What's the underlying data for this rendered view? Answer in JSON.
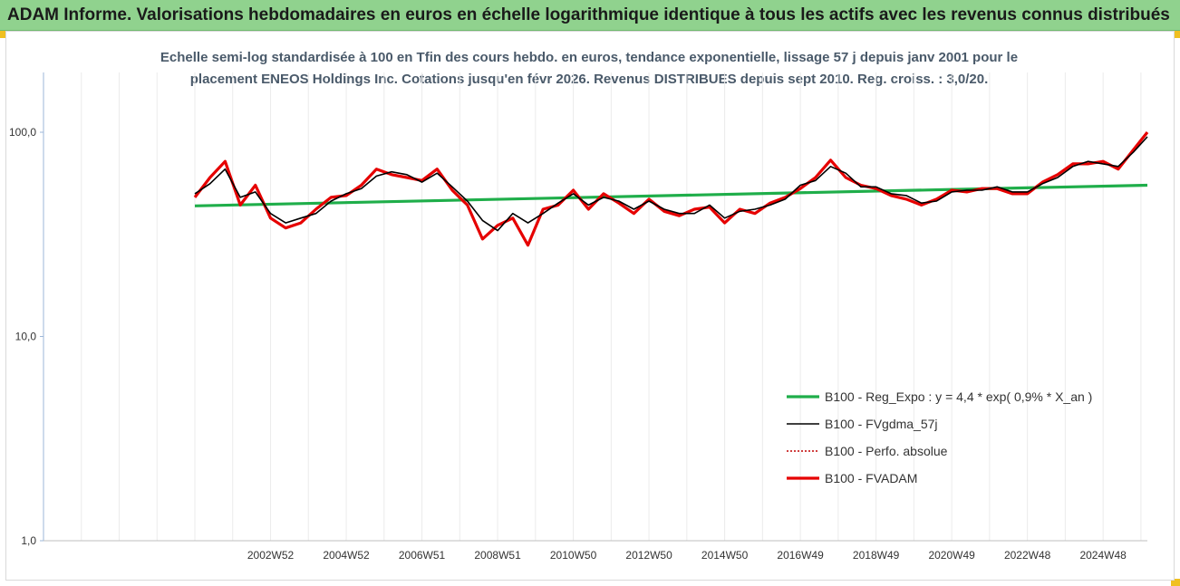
{
  "header": {
    "title": "ADAM Informe. Valorisations hebdomadaires en euros en échelle logarithmique identique à tous les actifs avec les revenus connus distribués"
  },
  "chart_data": {
    "type": "line",
    "title_line1": "Echelle semi-log standardisée à 100 en Tfin des cours hebdo. en euros, tendance exponentielle, lissage 57 j depuis janv 2001 pour le",
    "title_line2": "placement ENEOS Holdings Inc. Cotations jusqu'en févr 2026. Revenus DISTRIBUES depuis sept 2010. Reg. croiss. : 3,0/20.",
    "y_scale": "log",
    "ylim": [
      1,
      100
    ],
    "y_ticks": [
      {
        "value": 1,
        "label": "1,0"
      },
      {
        "value": 10,
        "label": "10,0"
      },
      {
        "value": 100,
        "label": "100,0"
      }
    ],
    "x_ticks": [
      {
        "t": 2003.0,
        "label": "2002W52"
      },
      {
        "t": 2005.0,
        "label": "2004W52"
      },
      {
        "t": 2007.0,
        "label": "2006W51"
      },
      {
        "t": 2009.0,
        "label": "2008W51"
      },
      {
        "t": 2011.0,
        "label": "2010W50"
      },
      {
        "t": 2013.0,
        "label": "2012W50"
      },
      {
        "t": 2015.0,
        "label": "2014W50"
      },
      {
        "t": 2017.0,
        "label": "2016W49"
      },
      {
        "t": 2019.0,
        "label": "2018W49"
      },
      {
        "t": 2021.0,
        "label": "2020W49"
      },
      {
        "t": 2023.0,
        "label": "2022W48"
      },
      {
        "t": 2025.0,
        "label": "2024W48"
      }
    ],
    "x_range": [
      1997.0,
      2026.17
    ],
    "grid": "vertical",
    "legend_position": "bottom-right",
    "series": [
      {
        "name": "B100 - Reg_Expo : y = 4,4 * exp( 0,9% *  X_an )",
        "color": "#1fae4a",
        "style": "solid-thick",
        "x": [
          2001.0,
          2026.17
        ],
        "values": [
          43.6,
          55.0
        ]
      },
      {
        "name": "B100 - FVgdma_57j",
        "color": "#000000",
        "style": "solid-thin",
        "x": [
          2001.0,
          2001.4,
          2001.8,
          2002.2,
          2002.6,
          2003.0,
          2003.4,
          2003.8,
          2004.2,
          2004.6,
          2005.0,
          2005.4,
          2005.8,
          2006.2,
          2006.6,
          2007.0,
          2007.4,
          2007.8,
          2008.2,
          2008.6,
          2009.0,
          2009.4,
          2009.8,
          2010.2,
          2010.6,
          2011.0,
          2011.4,
          2011.8,
          2012.2,
          2012.6,
          2013.0,
          2013.4,
          2013.8,
          2014.2,
          2014.6,
          2015.0,
          2015.4,
          2015.8,
          2016.2,
          2016.6,
          2017.0,
          2017.4,
          2017.8,
          2018.2,
          2018.6,
          2019.0,
          2019.4,
          2019.8,
          2020.2,
          2020.6,
          2021.0,
          2021.4,
          2021.8,
          2022.2,
          2022.6,
          2023.0,
          2023.4,
          2023.8,
          2024.2,
          2024.6,
          2025.0,
          2025.4,
          2025.8,
          2026.17
        ],
        "values": [
          50,
          56,
          66,
          48,
          51,
          40,
          36,
          38,
          40,
          46,
          50,
          53,
          61,
          64,
          62,
          57,
          63,
          54,
          46,
          37,
          33,
          40,
          36,
          40,
          45,
          50,
          44,
          48,
          46,
          42,
          46,
          42,
          40,
          40,
          44,
          38,
          41,
          42,
          44,
          47,
          55,
          58,
          68,
          63,
          54,
          54,
          50,
          49,
          45,
          46,
          51,
          52,
          52,
          54,
          51,
          51,
          56,
          60,
          68,
          72,
          70,
          68,
          80,
          95
        ]
      },
      {
        "name": "B100 - Perfo. absolue",
        "color": "#c00000",
        "style": "dotted",
        "x": [],
        "values": []
      },
      {
        "name": "B100 - FVADAM",
        "color": "#e60000",
        "style": "solid-thick",
        "x": [
          2001.0,
          2001.4,
          2001.8,
          2002.2,
          2002.6,
          2003.0,
          2003.4,
          2003.8,
          2004.2,
          2004.6,
          2005.0,
          2005.4,
          2005.8,
          2006.2,
          2006.6,
          2007.0,
          2007.4,
          2007.8,
          2008.2,
          2008.6,
          2009.0,
          2009.4,
          2009.8,
          2010.2,
          2010.6,
          2011.0,
          2011.4,
          2011.8,
          2012.2,
          2012.6,
          2013.0,
          2013.4,
          2013.8,
          2014.2,
          2014.6,
          2015.0,
          2015.4,
          2015.8,
          2016.2,
          2016.6,
          2017.0,
          2017.4,
          2017.8,
          2018.2,
          2018.6,
          2019.0,
          2019.4,
          2019.8,
          2020.2,
          2020.6,
          2021.0,
          2021.4,
          2021.8,
          2022.2,
          2022.6,
          2023.0,
          2023.4,
          2023.8,
          2024.2,
          2024.6,
          2025.0,
          2025.4,
          2025.8,
          2026.17
        ],
        "values": [
          48,
          60,
          72,
          44,
          55,
          38,
          34,
          36,
          42,
          48,
          49,
          55,
          66,
          62,
          60,
          58,
          66,
          52,
          44,
          30,
          35,
          38,
          28,
          42,
          44,
          52,
          42,
          50,
          45,
          40,
          47,
          41,
          39,
          42,
          43,
          36,
          42,
          40,
          45,
          48,
          53,
          60,
          73,
          60,
          55,
          53,
          49,
          47,
          44,
          47,
          52,
          51,
          53,
          53,
          50,
          50,
          57,
          62,
          70,
          70,
          72,
          66,
          82,
          100
        ]
      }
    ]
  }
}
